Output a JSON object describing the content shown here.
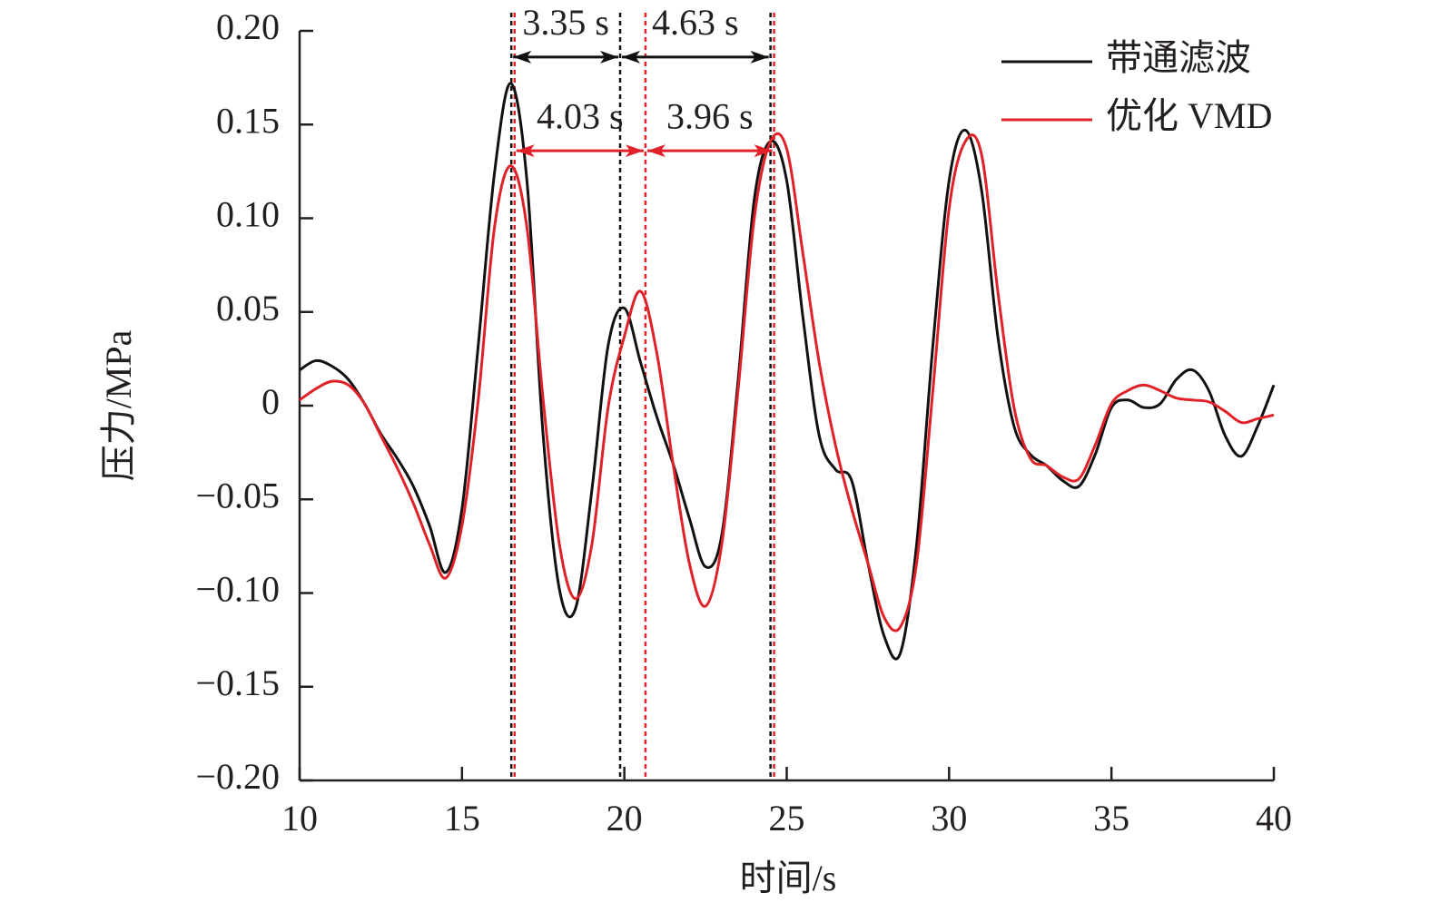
{
  "chart_data": {
    "type": "line",
    "x_label": "时间/s",
    "y_label": "压力/MPa",
    "xlim": [
      10,
      40
    ],
    "xticks": [
      10,
      15,
      20,
      25,
      30,
      35,
      40
    ],
    "ylim": [
      -0.2,
      0.2
    ],
    "yticks": [
      {
        "value": -0.2,
        "label": "−0.20"
      },
      {
        "value": -0.15,
        "label": "−0.15"
      },
      {
        "value": -0.1,
        "label": "−0.10"
      },
      {
        "value": -0.05,
        "label": "−0.05"
      },
      0,
      {
        "value": 0.05,
        "label": "0.05"
      },
      {
        "value": 0.1,
        "label": "0.10"
      },
      {
        "value": 0.15,
        "label": "0.15"
      },
      {
        "value": 0.2,
        "label": "0.20"
      }
    ],
    "legend": "upper right",
    "x": [
      10,
      10.5,
      11,
      11.5,
      12,
      12.5,
      13,
      13.5,
      14,
      14.5,
      15,
      15.5,
      16,
      16.5,
      17,
      17.5,
      18,
      18.5,
      19,
      19.5,
      20,
      20.5,
      21,
      21.5,
      22,
      22.5,
      23,
      23.5,
      24,
      24.5,
      25,
      25.5,
      26,
      26.5,
      27,
      27.5,
      28,
      28.5,
      29,
      29.5,
      30,
      30.5,
      31,
      31.5,
      32,
      32.5,
      33,
      33.5,
      34,
      34.5,
      35,
      35.5,
      36,
      36.5,
      37,
      37.5,
      38,
      38.5,
      39,
      39.5,
      40
    ],
    "series": [
      {
        "name": "带通滤波",
        "color": "#111111",
        "values": [
          0.019,
          0.024,
          0.021,
          0.014,
          0.001,
          -0.015,
          -0.028,
          -0.043,
          -0.064,
          -0.089,
          -0.055,
          0.032,
          0.124,
          0.172,
          0.12,
          -0.016,
          -0.098,
          -0.108,
          -0.045,
          0.032,
          0.052,
          0.023,
          -0.006,
          -0.031,
          -0.06,
          -0.086,
          -0.069,
          0.013,
          0.11,
          0.141,
          0.12,
          0.047,
          -0.016,
          -0.034,
          -0.04,
          -0.084,
          -0.123,
          -0.132,
          -0.074,
          0.032,
          0.12,
          0.147,
          0.115,
          0.037,
          -0.011,
          -0.026,
          -0.032,
          -0.04,
          -0.043,
          -0.026,
          -0.001,
          0.003,
          -0.001,
          0.001,
          0.014,
          0.019,
          0.008,
          -0.016,
          -0.027,
          -0.011,
          0.011
        ]
      },
      {
        "name": "优化 VMD",
        "color": "#e02228",
        "values": [
          0.003,
          0.009,
          0.013,
          0.011,
          0.001,
          -0.016,
          -0.033,
          -0.052,
          -0.074,
          -0.092,
          -0.064,
          0.003,
          0.095,
          0.128,
          0.095,
          0.003,
          -0.074,
          -0.103,
          -0.074,
          -0.001,
          0.037,
          0.061,
          0.028,
          -0.031,
          -0.084,
          -0.107,
          -0.074,
          0.008,
          0.1,
          0.141,
          0.137,
          0.081,
          0.023,
          -0.021,
          -0.055,
          -0.084,
          -0.113,
          -0.118,
          -0.084,
          0.008,
          0.105,
          0.141,
          0.134,
          0.061,
          -0.001,
          -0.028,
          -0.032,
          -0.038,
          -0.039,
          -0.021,
          0.001,
          0.008,
          0.011,
          0.008,
          0.004,
          0.003,
          0.002,
          -0.003,
          -0.009,
          -0.007,
          -0.005
        ]
      }
    ],
    "vlines": [
      {
        "x": 16.52,
        "color": "#111111"
      },
      {
        "x": 19.87,
        "color": "#111111"
      },
      {
        "x": 24.5,
        "color": "#111111"
      },
      {
        "x": 16.62,
        "color": "#e02228"
      },
      {
        "x": 20.65,
        "color": "#e02228"
      },
      {
        "x": 24.61,
        "color": "#e02228"
      }
    ],
    "annotations": [
      {
        "text": "3.35 s",
        "x1": 16.52,
        "x2": 19.87,
        "y": 0.186,
        "color": "#111111"
      },
      {
        "text": "4.63 s",
        "x1": 19.87,
        "x2": 24.5,
        "y": 0.186,
        "color": "#111111"
      },
      {
        "text": "4.03 s",
        "x1": 16.62,
        "x2": 20.65,
        "y": 0.136,
        "color": "#e02228"
      },
      {
        "text": "3.96 s",
        "x1": 20.65,
        "x2": 24.61,
        "y": 0.136,
        "color": "#e02228"
      }
    ]
  }
}
